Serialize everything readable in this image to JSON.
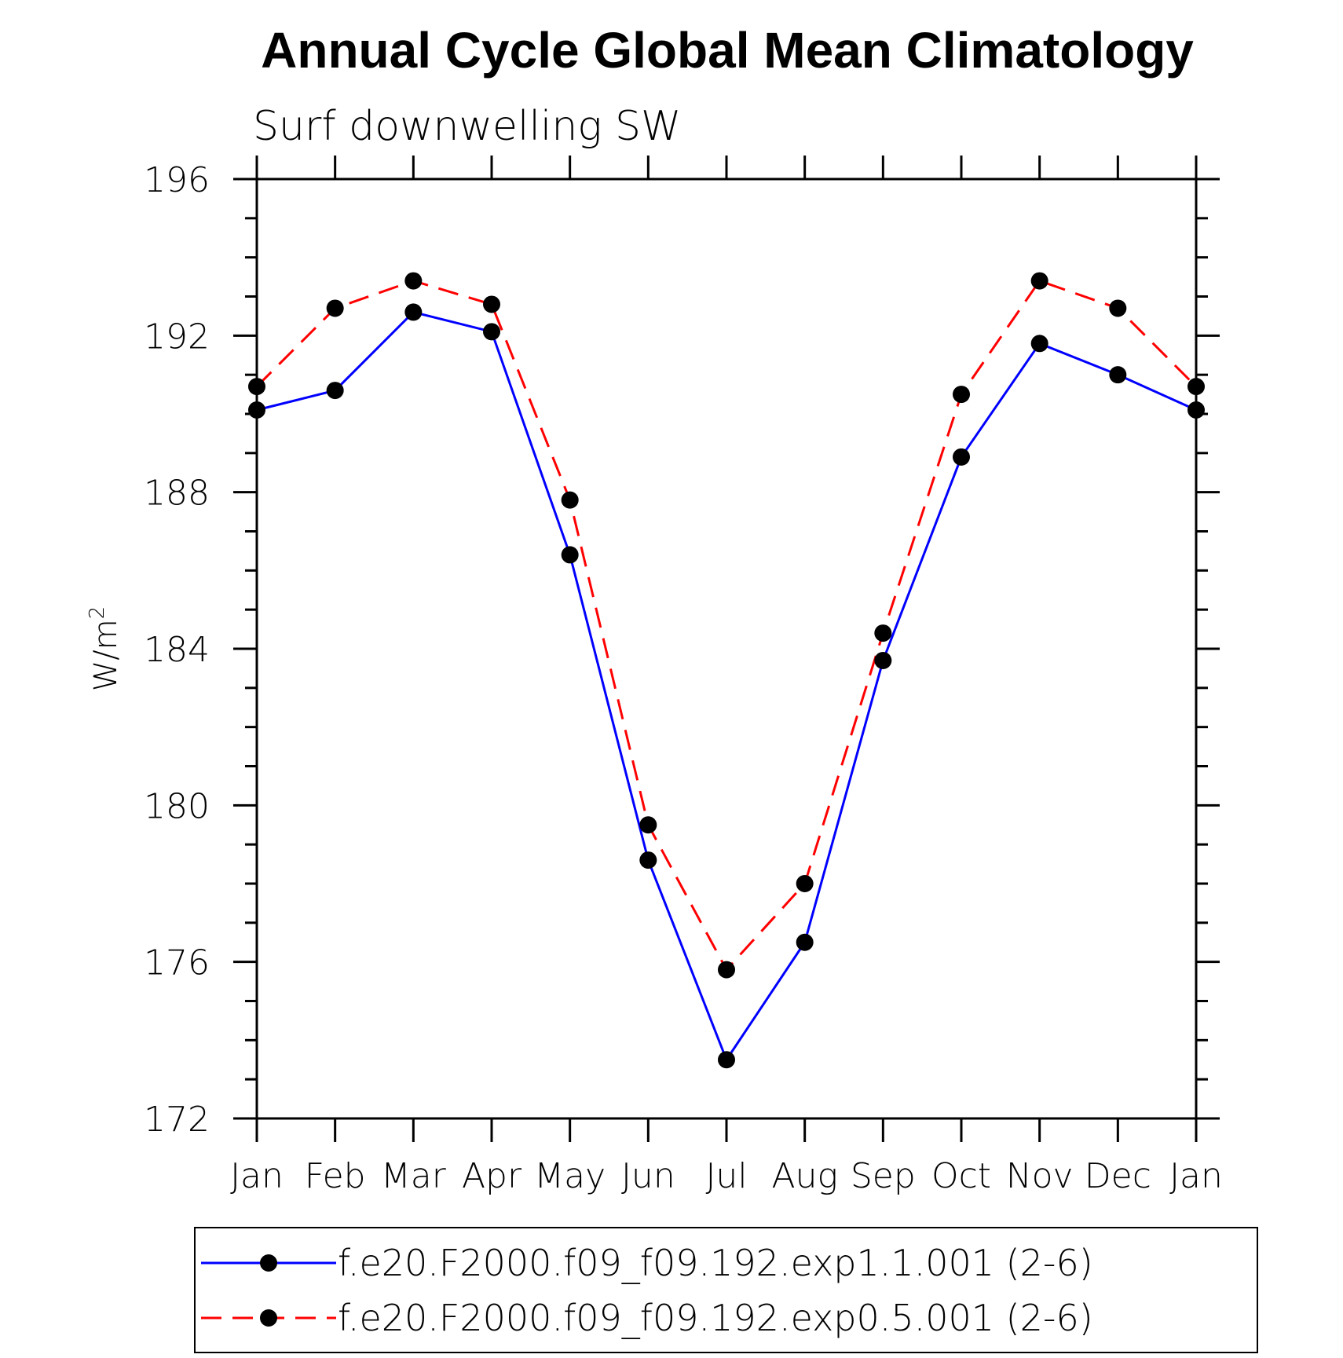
{
  "chart_data": {
    "type": "line",
    "title": "Annual Cycle Global Mean Climatology",
    "subtitle": "Surf downwelling SW",
    "ylabel": "W/m",
    "ylabel_superscript": "2",
    "xlabel": "",
    "categories": [
      "Jan",
      "Feb",
      "Mar",
      "Apr",
      "May",
      "Jun",
      "Jul",
      "Aug",
      "Sep",
      "Oct",
      "Nov",
      "Dec",
      "Jan"
    ],
    "ylim": [
      172,
      196
    ],
    "yticks": [
      "172",
      "176",
      "180",
      "184",
      "188",
      "192",
      "196"
    ],
    "series": [
      {
        "name": "f.e20.F2000.f09_f09.192.exp1.1.001 (2-6)",
        "color": "#0000ff",
        "dash": "solid",
        "values": [
          190.1,
          190.6,
          192.6,
          192.1,
          186.4,
          178.6,
          173.5,
          176.5,
          183.7,
          188.9,
          191.8,
          191.0,
          190.1
        ]
      },
      {
        "name": "f.e20.F2000.f09_f09.192.exp0.5.001 (2-6)",
        "color": "#ff0000",
        "dash": "dashed",
        "values": [
          190.7,
          192.7,
          193.4,
          192.8,
          187.8,
          179.5,
          175.8,
          178.0,
          184.4,
          190.5,
          193.4,
          192.7,
          190.7
        ]
      }
    ],
    "legend_position": "bottom",
    "grid": false
  }
}
